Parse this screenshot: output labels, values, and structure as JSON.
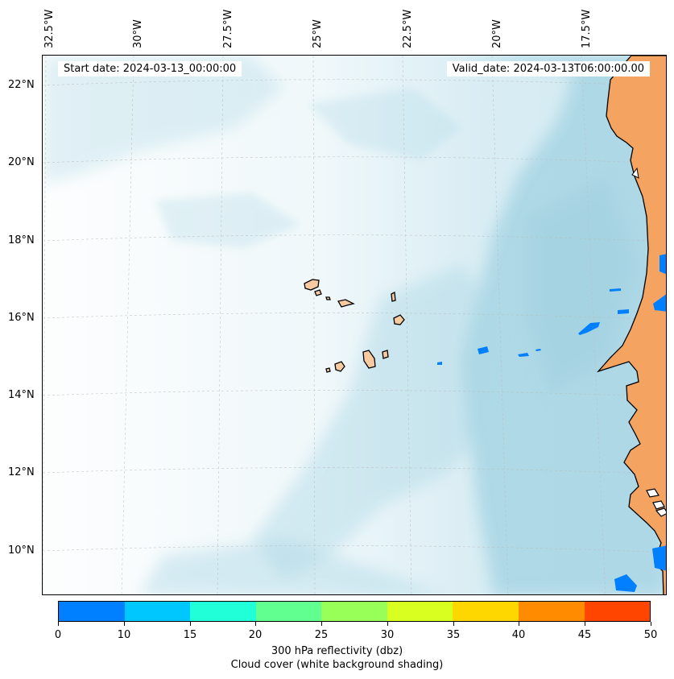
{
  "header": {
    "start_date": "Start date: 2024-03-13_00:00:00",
    "valid_date": "Valid_date: 2024-03-13T06:00:00.00"
  },
  "map": {
    "lon_labels": [
      "32.5°W",
      "30°W",
      "27.5°W",
      "25°W",
      "22.5°W",
      "20°W",
      "17.5°W"
    ],
    "lat_labels": [
      "22°N",
      "20°N",
      "18°N",
      "16°N",
      "14°N",
      "12°N",
      "10°N"
    ],
    "colors": {
      "land": "#f4a460",
      "cloud": "#add8e6",
      "ocean": "#ffffff",
      "reflectivity_low": "#0080ff"
    }
  },
  "colorbar": {
    "ticks": [
      "0",
      "10",
      "15",
      "20",
      "25",
      "30",
      "35",
      "40",
      "45",
      "50"
    ],
    "colors": [
      "#0080ff",
      "#00c8ff",
      "#20ffd8",
      "#60ff90",
      "#98ff58",
      "#d8ff20",
      "#ffd700",
      "#ff8c00",
      "#ff4500"
    ],
    "label": "300 hPa reflectivity (dbz)",
    "sublabel": "Cloud cover (white background shading)"
  }
}
